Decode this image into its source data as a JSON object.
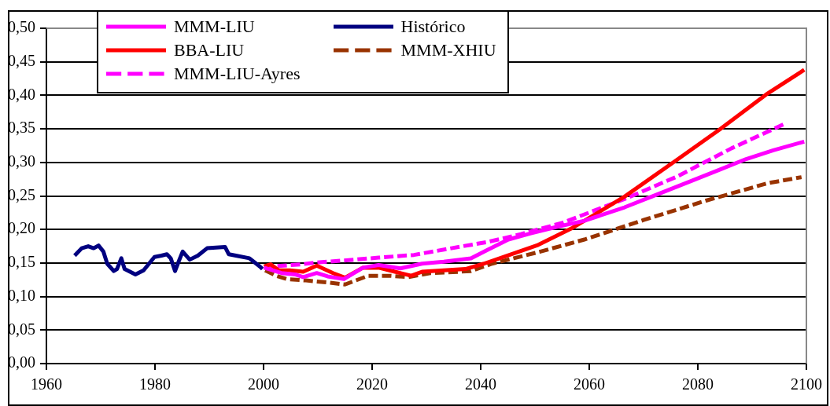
{
  "chart_data": {
    "type": "line",
    "xlim": [
      1960,
      2100
    ],
    "xticks": [
      1960,
      1980,
      2000,
      2020,
      2040,
      2060,
      2080,
      2100
    ],
    "ylim": [
      0,
      0.5
    ],
    "yticks": [
      {
        "value": 0,
        "label": "0,00"
      },
      {
        "value": 0.05,
        "label": "0,05"
      },
      {
        "value": 0.1,
        "label": "0,10"
      },
      {
        "value": 0.15,
        "label": "0,15"
      },
      {
        "value": 0.2,
        "label": "0,20"
      },
      {
        "value": 0.25,
        "label": "0,25"
      },
      {
        "value": 0.3,
        "label": "0,30"
      },
      {
        "value": 0.35,
        "label": "0,35"
      },
      {
        "value": 0.4,
        "label": "0,40"
      },
      {
        "value": 0.45,
        "label": "0,45"
      },
      {
        "value": 0.5,
        "label": "0,50"
      }
    ],
    "grid": "y",
    "legend": "top left",
    "marker": "none",
    "series": [
      {
        "name": "MMM-LIU",
        "color": "#ff00ff",
        "line_style": "solid",
        "x": [
          2000.1,
          2003.3,
          2005.8,
          2007.3,
          2009.8,
          2011.8,
          2014.8,
          2018.3,
          2021.2,
          2025.2,
          2029.2,
          2033.2,
          2038.2,
          2041.1,
          2045.1,
          2049.1,
          2054.1,
          2059.1,
          2066.5,
          2071.5,
          2079,
          2084,
          2088.9,
          2093.9,
          2099.6
        ],
        "values": [
          0.143,
          0.135,
          0.133,
          0.129,
          0.135,
          0.13,
          0.126,
          0.143,
          0.147,
          0.142,
          0.149,
          0.152,
          0.157,
          0.169,
          0.185,
          0.194,
          0.204,
          0.213,
          0.233,
          0.249,
          0.273,
          0.289,
          0.305,
          0.318,
          0.331
        ]
      },
      {
        "name": "Histórico",
        "color": "#000080",
        "line_style": "solid",
        "x": [
          1965.2,
          1966.5,
          1967.7,
          1968.7,
          1969.6,
          1970.5,
          1971.2,
          1972.4,
          1973,
          1973.8,
          1974.4,
          1976.4,
          1977.9,
          1979.9,
          1981.2,
          1982.2,
          1982.9,
          1983.7,
          1984.4,
          1985.1,
          1986.4,
          1987.9,
          1989.6,
          1992.9,
          1993.6,
          1994.9,
          1997.4,
          1999.3,
          1999.8
        ],
        "values": [
          0.161,
          0.172,
          0.175,
          0.172,
          0.176,
          0.167,
          0.149,
          0.138,
          0.141,
          0.157,
          0.141,
          0.133,
          0.139,
          0.159,
          0.161,
          0.163,
          0.157,
          0.138,
          0.153,
          0.167,
          0.155,
          0.161,
          0.172,
          0.174,
          0.163,
          0.161,
          0.157,
          0.145,
          0.141
        ]
      },
      {
        "name": "BBA-LIU",
        "color": "#ff0000",
        "line_style": "solid",
        "x": [
          2000.1,
          2001.3,
          2002.8,
          2004.8,
          2007.3,
          2009.8,
          2012.8,
          2015,
          2018.3,
          2021.2,
          2024.2,
          2027.2,
          2029.2,
          2033.2,
          2037.2,
          2040.6,
          2045.6,
          2050.6,
          2056.6,
          2061.6,
          2066.5,
          2076,
          2084,
          2092.9,
          2099.6
        ],
        "values": [
          0.145,
          0.148,
          0.139,
          0.139,
          0.137,
          0.146,
          0.135,
          0.128,
          0.143,
          0.143,
          0.137,
          0.131,
          0.137,
          0.139,
          0.141,
          0.149,
          0.163,
          0.177,
          0.201,
          0.225,
          0.249,
          0.303,
          0.349,
          0.403,
          0.438
        ]
      },
      {
        "name": "MMM-XHIU",
        "color": "#993300",
        "line_style": "dashed",
        "x": [
          2000.3,
          2002.3,
          2004.3,
          2007.8,
          2011.8,
          2015,
          2019.3,
          2023.2,
          2026.7,
          2030.7,
          2036.2,
          2038.2,
          2042.1,
          2046.1,
          2051,
          2059.1,
          2070,
          2081.5,
          2092.9,
          2099.1
        ],
        "values": [
          0.139,
          0.131,
          0.126,
          0.124,
          0.121,
          0.118,
          0.131,
          0.131,
          0.129,
          0.135,
          0.137,
          0.138,
          0.149,
          0.157,
          0.167,
          0.185,
          0.214,
          0.243,
          0.269,
          0.278
        ]
      },
      {
        "name": "MMM-LIU-Ayres",
        "color": "#ff00ff",
        "line_style": "dashed",
        "x": [
          2000.1,
          2006.8,
          2010.3,
          2016.8,
          2021.2,
          2027.7,
          2036.7,
          2041.1,
          2047.4,
          2055.1,
          2067,
          2076.2,
          2086.2,
          2096.4
        ],
        "values": [
          0.144,
          0.148,
          0.151,
          0.155,
          0.158,
          0.162,
          0.175,
          0.181,
          0.193,
          0.21,
          0.247,
          0.279,
          0.321,
          0.359
        ]
      }
    ]
  }
}
